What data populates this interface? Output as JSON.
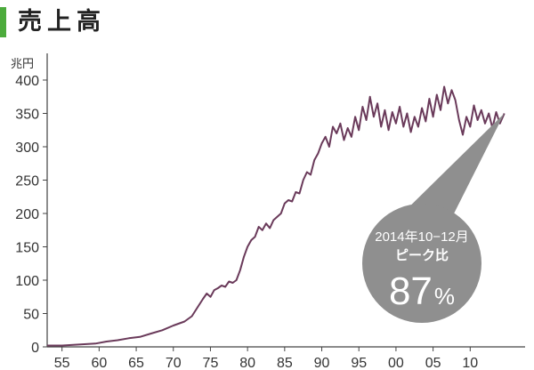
{
  "colors": {
    "line": "#6a3a5a",
    "axis": "#444444",
    "title_bar": "#4cab3c",
    "callout": "#8f8f8f",
    "callout_text": "#ffffff"
  },
  "chart_data": {
    "type": "line",
    "title": "売上高",
    "ylabel": "兆円",
    "ylim": [
      0,
      400
    ],
    "yticks": [
      0,
      50,
      100,
      150,
      200,
      250,
      300,
      350,
      400
    ],
    "xlim": [
      1953,
      2015
    ],
    "xtick_values": [
      1955,
      1960,
      1965,
      1970,
      1975,
      1980,
      1985,
      1990,
      1995,
      2000,
      2005,
      2010
    ],
    "xtick_labels": [
      "55",
      "60",
      "65",
      "70",
      "75",
      "80",
      "85",
      "90",
      "95",
      "00",
      "05",
      "10"
    ],
    "grid": false,
    "series": [
      {
        "values": [
          [
            1953.0,
            2
          ],
          [
            1955.0,
            2
          ],
          [
            1956.5,
            3
          ],
          [
            1958.0,
            4
          ],
          [
            1959.5,
            5
          ],
          [
            1961.0,
            8
          ],
          [
            1962.5,
            10
          ],
          [
            1964.0,
            13
          ],
          [
            1965.5,
            15
          ],
          [
            1967.0,
            20
          ],
          [
            1968.5,
            25
          ],
          [
            1970.0,
            32
          ],
          [
            1971.5,
            38
          ],
          [
            1972.5,
            46
          ],
          [
            1973.3,
            60
          ],
          [
            1974.0,
            72
          ],
          [
            1974.5,
            80
          ],
          [
            1975.0,
            75
          ],
          [
            1975.5,
            85
          ],
          [
            1976.0,
            88
          ],
          [
            1976.5,
            92
          ],
          [
            1977.0,
            90
          ],
          [
            1977.5,
            98
          ],
          [
            1978.0,
            96
          ],
          [
            1978.5,
            100
          ],
          [
            1979.0,
            115
          ],
          [
            1979.5,
            135
          ],
          [
            1980.0,
            150
          ],
          [
            1980.5,
            160
          ],
          [
            1981.0,
            165
          ],
          [
            1981.5,
            180
          ],
          [
            1982.0,
            175
          ],
          [
            1982.5,
            185
          ],
          [
            1983.0,
            178
          ],
          [
            1983.5,
            190
          ],
          [
            1984.0,
            195
          ],
          [
            1984.5,
            200
          ],
          [
            1985.0,
            215
          ],
          [
            1985.5,
            220
          ],
          [
            1986.0,
            218
          ],
          [
            1986.5,
            232
          ],
          [
            1987.0,
            230
          ],
          [
            1987.5,
            250
          ],
          [
            1988.0,
            262
          ],
          [
            1988.5,
            258
          ],
          [
            1989.0,
            280
          ],
          [
            1989.5,
            290
          ],
          [
            1990.0,
            305
          ],
          [
            1990.5,
            315
          ],
          [
            1991.0,
            300
          ],
          [
            1991.5,
            330
          ],
          [
            1992.0,
            320
          ],
          [
            1992.5,
            335
          ],
          [
            1993.0,
            310
          ],
          [
            1993.5,
            328
          ],
          [
            1994.0,
            315
          ],
          [
            1994.5,
            345
          ],
          [
            1995.0,
            325
          ],
          [
            1995.5,
            360
          ],
          [
            1996.0,
            340
          ],
          [
            1996.5,
            375
          ],
          [
            1997.0,
            345
          ],
          [
            1997.5,
            365
          ],
          [
            1998.0,
            330
          ],
          [
            1998.5,
            355
          ],
          [
            1999.0,
            325
          ],
          [
            1999.5,
            352
          ],
          [
            2000.0,
            335
          ],
          [
            2000.5,
            360
          ],
          [
            2001.0,
            330
          ],
          [
            2001.5,
            350
          ],
          [
            2002.0,
            322
          ],
          [
            2002.5,
            345
          ],
          [
            2003.0,
            330
          ],
          [
            2003.5,
            358
          ],
          [
            2004.0,
            338
          ],
          [
            2004.5,
            372
          ],
          [
            2005.0,
            345
          ],
          [
            2005.5,
            378
          ],
          [
            2006.0,
            355
          ],
          [
            2006.5,
            390
          ],
          [
            2007.0,
            365
          ],
          [
            2007.5,
            385
          ],
          [
            2008.0,
            370
          ],
          [
            2008.5,
            340
          ],
          [
            2009.0,
            318
          ],
          [
            2009.5,
            345
          ],
          [
            2010.0,
            330
          ],
          [
            2010.5,
            362
          ],
          [
            2011.0,
            340
          ],
          [
            2011.5,
            355
          ],
          [
            2012.0,
            335
          ],
          [
            2012.5,
            350
          ],
          [
            2013.0,
            328
          ],
          [
            2013.5,
            352
          ],
          [
            2014.0,
            335
          ],
          [
            2014.6,
            350
          ]
        ]
      }
    ],
    "annotation": {
      "period": "2014年10−12月",
      "label": "ピーク比",
      "value": "87",
      "unit": "%"
    }
  }
}
